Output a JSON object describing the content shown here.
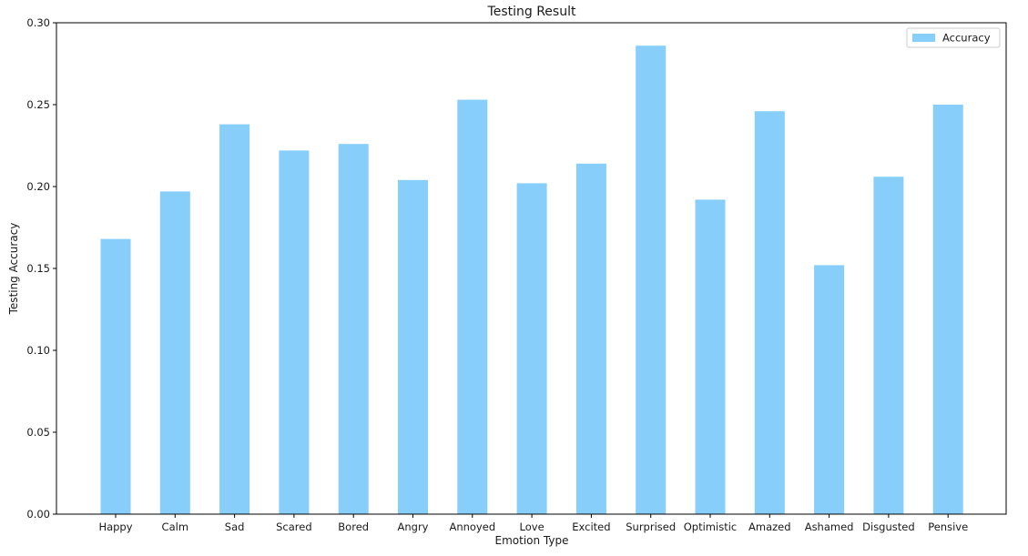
{
  "chart_data": {
    "type": "bar",
    "title": "Testing Result",
    "xlabel": "Emotion Type",
    "ylabel": "Testing Accuracy",
    "ylim": [
      0,
      0.3
    ],
    "yticks": [
      "0.00",
      "0.05",
      "0.10",
      "0.15",
      "0.20",
      "0.25",
      "0.30"
    ],
    "grid": false,
    "legend_position": "top-right",
    "categories": [
      "Happy",
      "Calm",
      "Sad",
      "Scared",
      "Bored",
      "Angry",
      "Annoyed",
      "Love",
      "Excited",
      "Surprised",
      "Optimistic",
      "Amazed",
      "Ashamed",
      "Disgusted",
      "Pensive"
    ],
    "series": [
      {
        "name": "Accuracy",
        "color": "#87cefa",
        "values": [
          0.168,
          0.197,
          0.238,
          0.222,
          0.226,
          0.204,
          0.253,
          0.202,
          0.214,
          0.286,
          0.192,
          0.246,
          0.152,
          0.206,
          0.25
        ]
      }
    ]
  }
}
